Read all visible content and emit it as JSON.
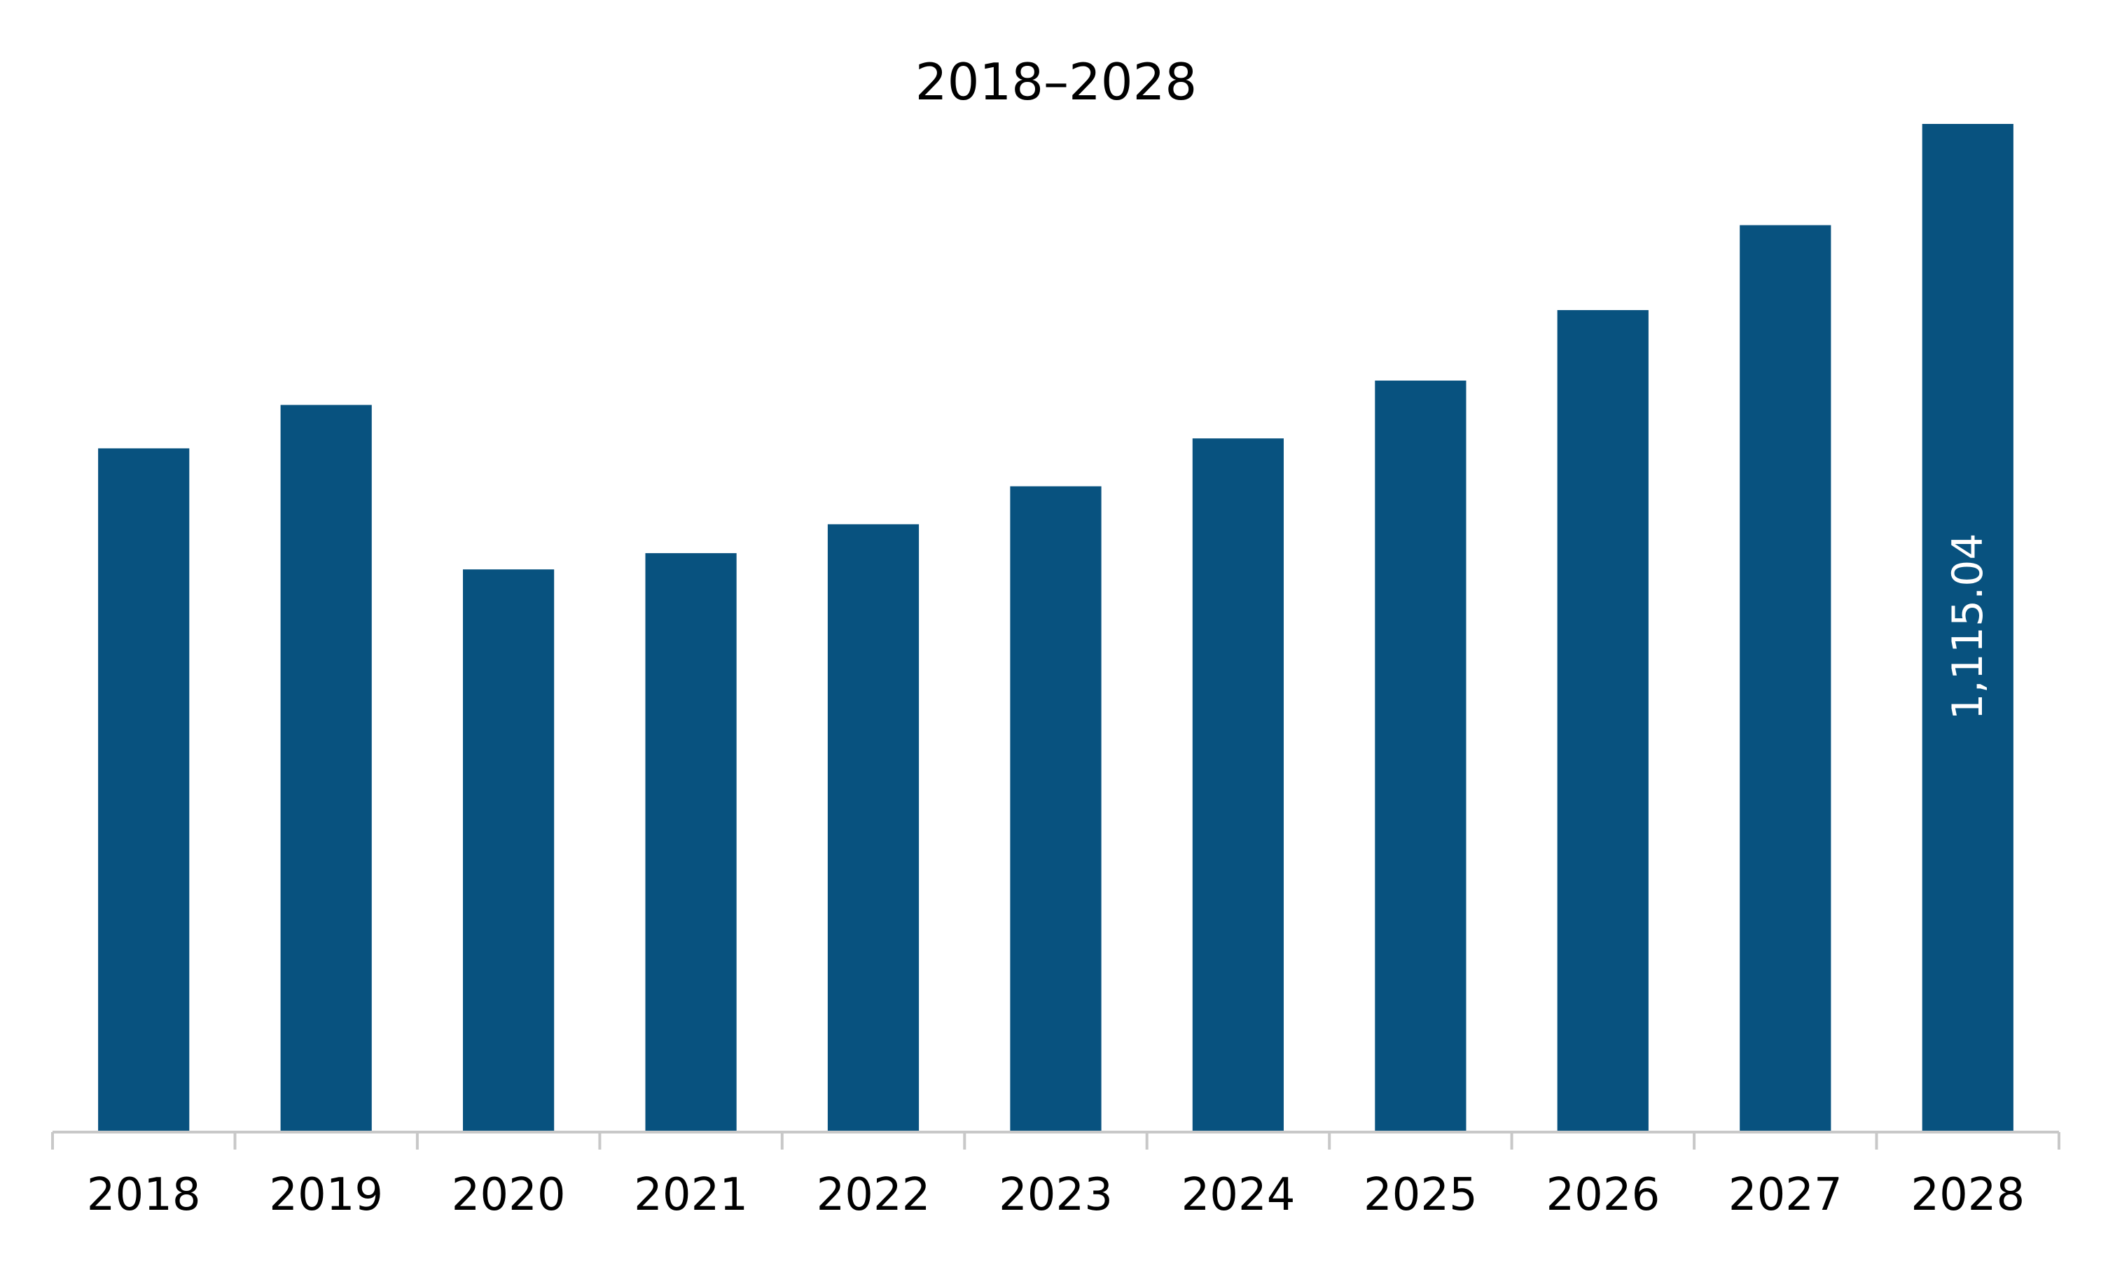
{
  "chart_data": {
    "type": "bar",
    "title": "2018–2028",
    "xlabel": "",
    "ylabel": "",
    "categories": [
      "2018",
      "2019",
      "2020",
      "2021",
      "2022",
      "2023",
      "2024",
      "2025",
      "2026",
      "2027",
      "2028"
    ],
    "series": [
      {
        "values": [
          756,
          804,
          622,
          640,
          672,
          714,
          767,
          831,
          909,
          1003,
          1115.04
        ]
      }
    ],
    "data_labels": [
      {
        "category": "2028",
        "text": "1,115.04"
      }
    ],
    "ylim": [
      0,
      1115.04
    ],
    "grid": false,
    "legend": "none",
    "colors": {
      "bar": "#08527f",
      "axis": "#c8c8c8",
      "text": "#000000",
      "label_on_bar": "#ffffff"
    }
  }
}
